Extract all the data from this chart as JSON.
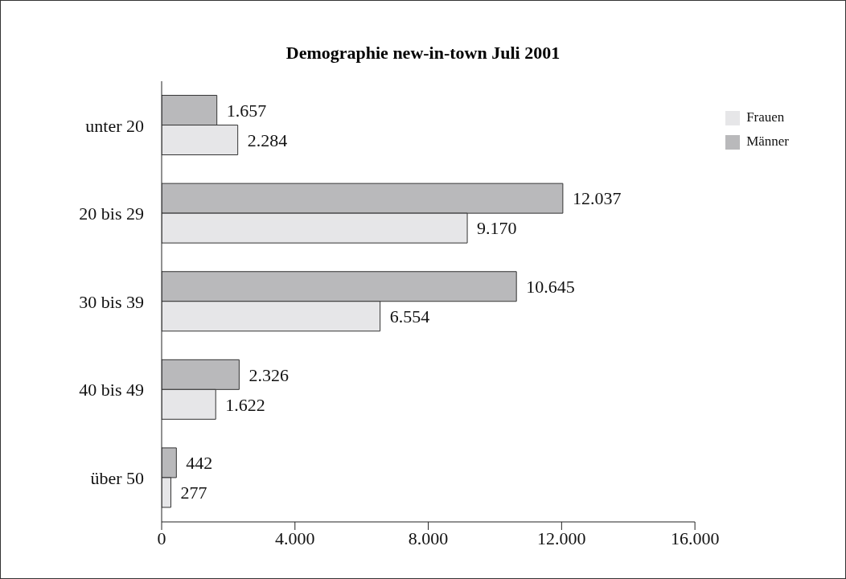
{
  "chart_data": {
    "type": "bar",
    "orientation": "horizontal",
    "title": "Demographie new-in-town Juli 2001",
    "categories": [
      "unter 20",
      "20 bis 29",
      "30 bis 39",
      "40 bis 49",
      "über 50"
    ],
    "series": [
      {
        "name": "Männer",
        "color": "#b9b9bb",
        "values": [
          1657,
          12037,
          10645,
          2326,
          442
        ],
        "value_labels": [
          "1.657",
          "12.037",
          "10.645",
          "2.326",
          "442"
        ]
      },
      {
        "name": "Frauen",
        "color": "#e6e6e8",
        "values": [
          2284,
          9170,
          6554,
          1622,
          277
        ],
        "value_labels": [
          "2.284",
          "9.170",
          "6.554",
          "1.622",
          "277"
        ]
      }
    ],
    "xlim": [
      0,
      16000
    ],
    "xticks": [
      {
        "value": 0,
        "label": "0"
      },
      {
        "value": 4000,
        "label": "4.000"
      },
      {
        "value": 8000,
        "label": "8.000"
      },
      {
        "value": 12000,
        "label": "12.000"
      },
      {
        "value": 16000,
        "label": "16.000"
      }
    ],
    "grid": false,
    "legend": "top right"
  }
}
